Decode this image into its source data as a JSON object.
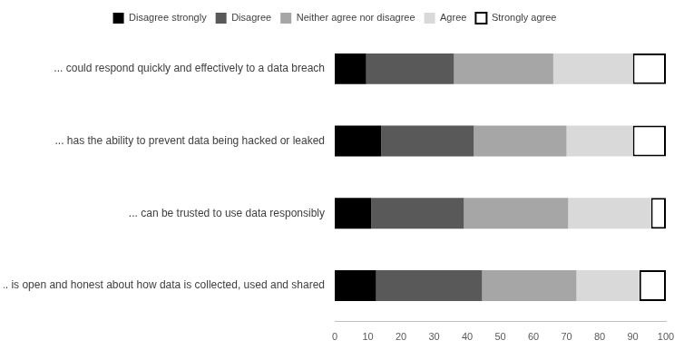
{
  "chart_data": {
    "type": "bar",
    "orientation": "horizontal",
    "stacked": true,
    "legend": "top",
    "grid": false,
    "categories": [
      "... could respond quickly and effectively to a data breach",
      "... has the ability to prevent data being hacked or leaked",
      "... can be trusted to use data responsibly",
      "... is open and honest about how data is collected, used and shared"
    ],
    "series": [
      {
        "name": "Disagree strongly",
        "color": "#000000",
        "values": [
          9.5,
          14,
          11,
          12.5
        ]
      },
      {
        "name": "Disagree",
        "color": "#595959",
        "values": [
          26.5,
          28,
          28,
          32
        ]
      },
      {
        "name": "Neither agree nor disagree",
        "color": "#a6a6a6",
        "values": [
          30,
          28,
          31.5,
          28.5
        ]
      },
      {
        "name": "Agree",
        "color": "#d9d9d9",
        "values": [
          24,
          20,
          25,
          19
        ]
      },
      {
        "name": "Strongly agree",
        "color": "#ffffff",
        "values": [
          10,
          10,
          4.5,
          8
        ]
      }
    ],
    "xlim": [
      0,
      100
    ],
    "xticks": [
      0,
      10,
      20,
      30,
      40,
      50,
      60,
      70,
      80,
      90,
      100
    ]
  }
}
